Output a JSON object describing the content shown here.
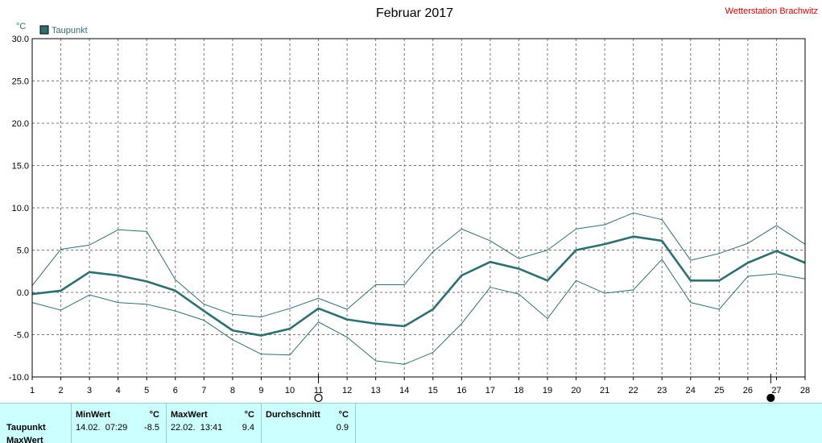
{
  "chart_data": {
    "type": "line",
    "title": "Februar 2017",
    "station": "Wetterstation Brachwitz",
    "yunit": "°C",
    "ylim": [
      -10,
      30
    ],
    "yticks": [
      "30.0",
      "25.0",
      "20.0",
      "15.0",
      "10.0",
      "5.0",
      "0.0",
      "-5.0",
      "-10.0"
    ],
    "x": [
      1,
      2,
      3,
      4,
      5,
      6,
      7,
      8,
      9,
      10,
      11,
      12,
      13,
      14,
      15,
      16,
      17,
      18,
      19,
      20,
      21,
      22,
      23,
      24,
      25,
      26,
      27,
      28
    ],
    "xlim": [
      1,
      28
    ],
    "grid": true,
    "legend": "top-left",
    "legend_label": "Taupunkt",
    "series": [
      {
        "name": "Taupunkt",
        "role": "mean",
        "color": "#2f6f6f",
        "values": [
          -0.2,
          0.2,
          2.4,
          2.0,
          1.3,
          0.2,
          -2.2,
          -4.5,
          -5.1,
          -4.3,
          -1.9,
          -3.2,
          -3.7,
          -4.0,
          -2.0,
          2.0,
          3.6,
          2.8,
          1.4,
          5.0,
          5.7,
          6.6,
          6.1,
          1.4,
          1.4,
          3.5,
          4.9,
          3.5
        ]
      },
      {
        "role": "max",
        "color": "#2f6f6f",
        "values": [
          0.8,
          5.1,
          5.6,
          7.4,
          7.2,
          1.5,
          -1.4,
          -2.6,
          -2.9,
          -1.9,
          -0.7,
          -2.0,
          0.9,
          0.9,
          4.8,
          7.5,
          6.1,
          4.0,
          5.0,
          7.5,
          8.0,
          9.4,
          8.6,
          3.8,
          4.6,
          5.8,
          7.9,
          5.7
        ]
      },
      {
        "role": "min",
        "color": "#2f6f6f",
        "values": [
          -1.2,
          -2.1,
          -0.3,
          -1.2,
          -1.4,
          -2.2,
          -3.3,
          -5.6,
          -7.3,
          -7.4,
          -3.5,
          -5.3,
          -8.1,
          -8.5,
          -7.1,
          -3.7,
          0.6,
          -0.2,
          -3.1,
          1.4,
          -0.1,
          0.3,
          3.9,
          -1.2,
          -2.0,
          1.9,
          2.2,
          1.6
        ]
      }
    ],
    "moon_phases": [
      {
        "day": 11,
        "phase": "full"
      },
      {
        "day": 26.8,
        "phase": "new"
      }
    ]
  },
  "stats": {
    "row_label": "Taupunkt",
    "row_label_2": "MaxWert",
    "min": {
      "header": "MinWert",
      "unit": "°C",
      "datetime": "14.02.  07:29",
      "value": "-8.5"
    },
    "max": {
      "header": "MaxWert",
      "unit": "°C",
      "datetime": "22.02.  13:41",
      "value": "9.4"
    },
    "avg": {
      "header": "Durchschnitt",
      "unit": "°C",
      "value": "0.9"
    }
  }
}
